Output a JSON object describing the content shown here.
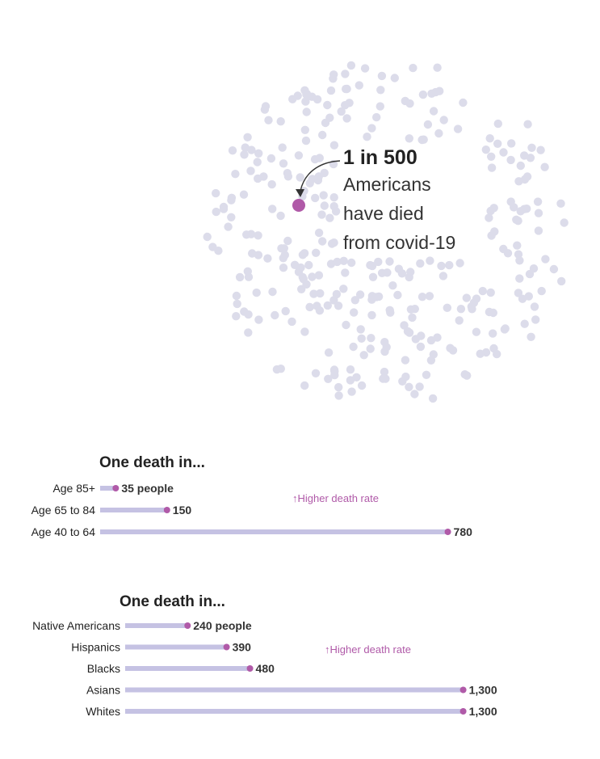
{
  "colors": {
    "highlight_dot": "#b05aa8",
    "bar": "#c5c2e3",
    "background_dot": "#dcdcea",
    "text": "#222222",
    "accent_text": "#b05aa8"
  },
  "callout": {
    "headline": "1 in 500",
    "line1": "Americans",
    "line2": "have died",
    "line3": "from covid-19"
  },
  "chart_data": [
    {
      "type": "bar",
      "title": "One death in...",
      "categories": [
        "Age 85+",
        "Age 65 to 84",
        "Age 40 to 64"
      ],
      "values": [
        35,
        150,
        780
      ],
      "value_labels": [
        "35 people",
        "150",
        "780"
      ],
      "annotation": "Higher death rate",
      "orientation": "horizontal",
      "grid": false,
      "legend": "none"
    },
    {
      "type": "bar",
      "title": "One death in...",
      "categories": [
        "Native Americans",
        "Hispanics",
        "Blacks",
        "Asians",
        "Whites"
      ],
      "values": [
        240,
        390,
        480,
        1300,
        1300
      ],
      "value_labels": [
        "240 people",
        "390",
        "480",
        "1,300",
        "1,300"
      ],
      "annotation": "Higher death rate",
      "orientation": "horizontal",
      "grid": false,
      "legend": "none"
    }
  ]
}
